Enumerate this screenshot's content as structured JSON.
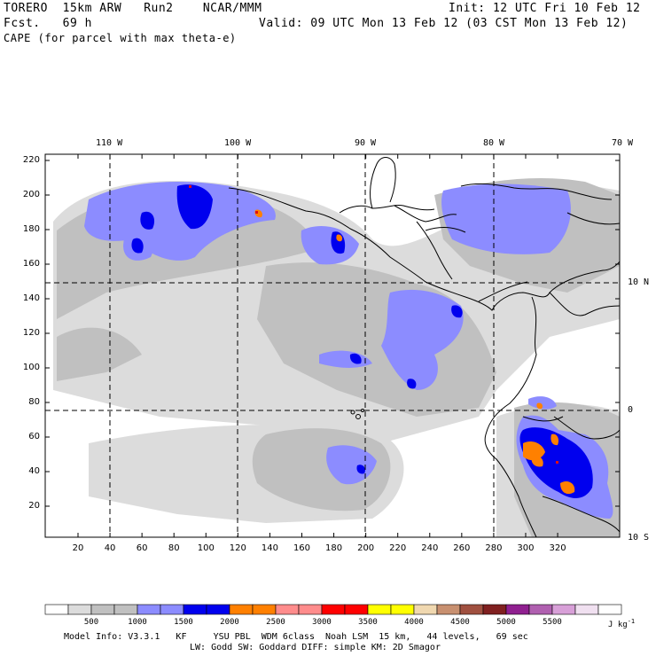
{
  "header": {
    "model_line": "TORERO  15km ARW   Run2    NCAR/MMM",
    "init": "Init: 12 UTC Fri 10 Feb 12",
    "fcst": "Fcst.   69 h",
    "valid": "Valid: 09 UTC Mon 13 Feb 12 (03 CST Mon 13 Feb 12)",
    "field": "CAPE (for parcel with max theta-e)"
  },
  "map": {
    "top_lon_labels": [
      "110 W",
      "100 W",
      "90 W",
      "80 W",
      "70 W"
    ],
    "right_lat_labels": [
      "10 N",
      "0",
      "10 S"
    ],
    "y_ticks": [
      "220",
      "200",
      "180",
      "160",
      "140",
      "120",
      "100",
      "80",
      "60",
      "40",
      "20"
    ],
    "x_ticks": [
      "20",
      "40",
      "60",
      "80",
      "100",
      "120",
      "140",
      "160",
      "180",
      "200",
      "220",
      "240",
      "260",
      "280",
      "300",
      "320"
    ],
    "colors": {
      "light_gray": "#dcdcdc",
      "mid_gray": "#c0c0c0",
      "lavender": "#8c8cff",
      "blue": "#0000ee",
      "orange": "#ff8000",
      "red": "#e01010"
    }
  },
  "colorbar": {
    "labels": [
      "500",
      "1000",
      "1500",
      "2000",
      "2500",
      "3000",
      "3500",
      "4000",
      "4500",
      "5000",
      "5500"
    ],
    "units": "J kg",
    "units_exp": "-1",
    "colors": [
      "#ffffff",
      "#dcdcdc",
      "#c0c0c0",
      "#c0c0c0",
      "#8c8cff",
      "#8c8cff",
      "#0000ee",
      "#0000ee",
      "#ff8000",
      "#ff8000",
      "#ff8c8c",
      "#ff8c8c",
      "#ff0000",
      "#ff0000",
      "#ffff00",
      "#ffff00",
      "#f0d8b0",
      "#c89070",
      "#a05040",
      "#802020",
      "#902090",
      "#b060b0",
      "#d8a0d8",
      "#f0e0f0",
      "#ffffff"
    ]
  },
  "footer": {
    "line1": "Model Info: V3.3.1   KF     YSU PBL  WDM 6class  Noah LSM  15 km,   44 levels,   69 sec",
    "line2": "LW: Godd SW: Goddard DIFF: simple KM: 2D Smagor"
  }
}
